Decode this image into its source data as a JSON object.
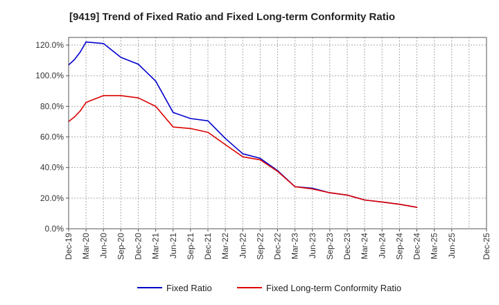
{
  "chart_data": {
    "type": "line",
    "title": "[9419]  Trend of Fixed Ratio and Fixed Long-term Conformity Ratio",
    "xlabel": "",
    "ylabel": "",
    "x_ticks": [
      "Dec-19",
      "Mar-20",
      "Jun-20",
      "Sep-20",
      "Dec-20",
      "Mar-21",
      "Jun-21",
      "Sep-21",
      "Dec-21",
      "Mar-22",
      "Jun-22",
      "Sep-22",
      "Dec-22",
      "Mar-23",
      "Jun-23",
      "Sep-23",
      "Dec-23",
      "Mar-24",
      "Jun-24",
      "Sep-24",
      "Dec-24",
      "Mar-25",
      "Jun-25",
      "Dec-25"
    ],
    "y_ticks": [
      "0.0%",
      "20.0%",
      "40.0%",
      "60.0%",
      "80.0%",
      "100.0%",
      "120.0%"
    ],
    "y_tick_values": [
      0,
      20,
      40,
      60,
      80,
      100,
      120
    ],
    "ylim": [
      0,
      125
    ],
    "x_month_range": [
      "2019-12",
      "2025-12"
    ],
    "grid": true,
    "legend_position": "bottom",
    "series": [
      {
        "name": "Fixed Ratio",
        "color": "#0000cc",
        "x": [
          "2019-12",
          "2020-01",
          "2020-02",
          "2020-03",
          "2020-06",
          "2020-09",
          "2020-12",
          "2021-03",
          "2021-06",
          "2021-09",
          "2021-12",
          "2022-03",
          "2022-06",
          "2022-09",
          "2022-12",
          "2023-03",
          "2023-06",
          "2023-09",
          "2023-12",
          "2024-03",
          "2024-06",
          "2024-09",
          "2024-12"
        ],
        "values": [
          107.0,
          110.5,
          115.5,
          122.0,
          121.0,
          112.0,
          107.5,
          96.5,
          76.0,
          72.0,
          70.5,
          59.0,
          49.0,
          46.0,
          38.0,
          27.5,
          26.5,
          23.5,
          22.0,
          18.8,
          17.5,
          16.0,
          14.0
        ]
      },
      {
        "name": "Fixed Long-term Conformity Ratio",
        "color": "#dd0000",
        "x": [
          "2019-12",
          "2020-01",
          "2020-02",
          "2020-03",
          "2020-06",
          "2020-09",
          "2020-12",
          "2021-03",
          "2021-06",
          "2021-09",
          "2021-12",
          "2022-03",
          "2022-06",
          "2022-09",
          "2022-12",
          "2023-03",
          "2023-06",
          "2023-09",
          "2023-12",
          "2024-03",
          "2024-06",
          "2024-09",
          "2024-12"
        ],
        "values": [
          70.0,
          73.0,
          77.0,
          82.5,
          87.0,
          87.0,
          85.5,
          80.0,
          66.5,
          65.5,
          63.0,
          55.0,
          47.0,
          45.0,
          37.5,
          27.5,
          26.0,
          23.5,
          22.0,
          18.8,
          17.5,
          16.0,
          14.0
        ]
      }
    ]
  }
}
